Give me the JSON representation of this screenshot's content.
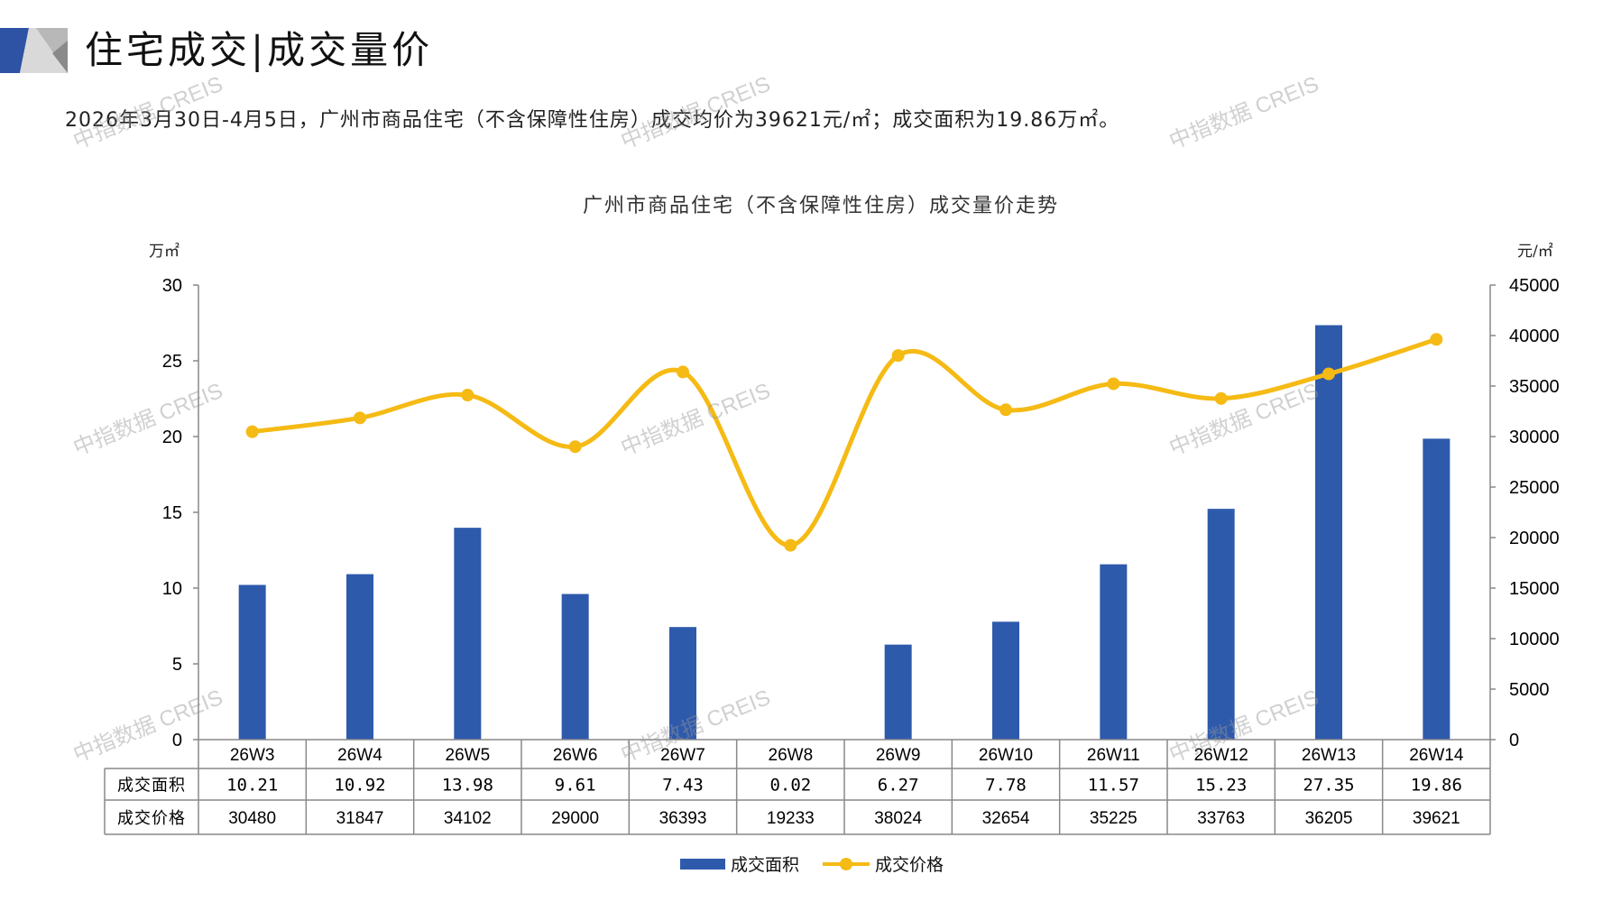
{
  "header": {
    "title": "住宅成交|成交量价"
  },
  "summary": "2026年3月30日-4月5日，广州市商品住宅（不含保障性住房）成交均价为39621元/㎡；成交面积为19.86万㎡。",
  "watermark": "中指数据 CREIS",
  "colors": {
    "bar": "#2E5AAC",
    "line": "#F5BA14",
    "axis": "#888888"
  },
  "chart_data": {
    "type": "bar+line",
    "title": "广州市商品住宅（不含保障性住房）成交量价走势",
    "ylabel_left": "万㎡",
    "ylabel_right": "元/㎡",
    "ylim_left": [
      0,
      30
    ],
    "ylim_right": [
      0,
      45000
    ],
    "yticks_left": [
      "30",
      "25",
      "20",
      "15",
      "10",
      "5",
      "0"
    ],
    "yticks_right": [
      "45000",
      "40000",
      "35000",
      "30000",
      "25000",
      "20000",
      "15000",
      "10000",
      "5000",
      "0"
    ],
    "categories": [
      "26W3",
      "26W4",
      "26W5",
      "26W6",
      "26W7",
      "26W8",
      "26W9",
      "26W10",
      "26W11",
      "26W12",
      "26W13",
      "26W14"
    ],
    "series": [
      {
        "name": "成交面积",
        "type": "bar",
        "axis": "left",
        "values": [
          10.21,
          10.92,
          13.98,
          9.61,
          7.43,
          0.02,
          6.27,
          7.78,
          11.57,
          15.23,
          27.35,
          19.86
        ],
        "labels": [
          "10.21",
          "10.92",
          "13.98",
          "9.61",
          "7.43",
          "0.02",
          "6.27",
          "7.78",
          "11.57",
          "15.23",
          "27.35",
          "19.86"
        ]
      },
      {
        "name": "成交价格",
        "type": "line",
        "axis": "right",
        "values": [
          30480,
          31847,
          34102,
          29000,
          36393,
          19233,
          38024,
          32654,
          35225,
          33763,
          36205,
          39621
        ],
        "labels": [
          "30480",
          "31847",
          "34102",
          "29000",
          "36393",
          "19233",
          "38024",
          "32654",
          "35225",
          "33763",
          "36205",
          "39621"
        ]
      }
    ],
    "legend": [
      "成交面积",
      "成交价格"
    ],
    "legend_position": "bottom"
  }
}
